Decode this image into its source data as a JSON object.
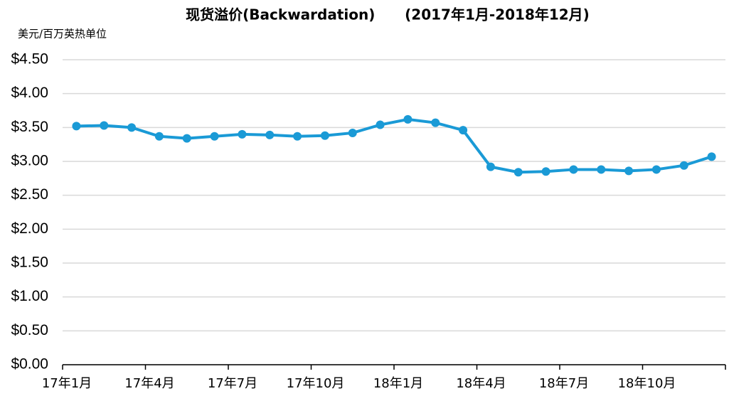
{
  "chart_data": {
    "type": "line",
    "title": "现货溢价(Backwardation)      (2017年1月-2018年12月)",
    "y_label": "美元/百万英热单位",
    "categories": [
      "17年1月",
      null,
      null,
      "17年4月",
      null,
      null,
      "17年7月",
      null,
      null,
      "17年10月",
      null,
      null,
      "18年1月",
      null,
      null,
      "18年4月",
      null,
      null,
      "18年7月",
      null,
      null,
      "18年10月",
      null,
      null
    ],
    "values": [
      3.52,
      3.53,
      3.5,
      3.37,
      3.34,
      3.37,
      3.4,
      3.39,
      3.37,
      3.38,
      3.42,
      3.54,
      3.62,
      3.57,
      3.46,
      2.92,
      2.84,
      2.85,
      2.88,
      2.88,
      2.86,
      2.88,
      2.94,
      3.07
    ],
    "color": "#1a9ad6",
    "ylim": [
      0,
      4.5
    ],
    "yticks": [
      {
        "value": 0,
        "label": "$0.00"
      },
      {
        "value": 0.5,
        "label": "$0.50"
      },
      {
        "value": 1,
        "label": "$1.00"
      },
      {
        "value": 1.5,
        "label": "$1.50"
      },
      {
        "value": 2,
        "label": "$2.00"
      },
      {
        "value": 2.5,
        "label": "$2.50"
      },
      {
        "value": 3,
        "label": "$3.00"
      },
      {
        "value": 3.5,
        "label": "$3.50"
      },
      {
        "value": 4,
        "label": "$4.00"
      },
      {
        "value": 4.5,
        "label": "$4.50"
      }
    ],
    "grid": true
  }
}
